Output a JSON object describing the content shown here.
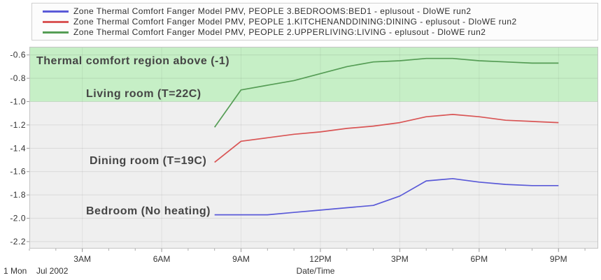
{
  "chart_data": {
    "type": "line",
    "xlabel": "Date/Time",
    "x_day_label": "1 Mon",
    "x_month_label": "Jul 2002",
    "xlim": [
      "01:00",
      "22:30"
    ],
    "ylim": [
      -2.26,
      -0.53
    ],
    "x_ticks": [
      {
        "label": "3AM",
        "time": "03:00"
      },
      {
        "label": "6AM",
        "time": "06:00"
      },
      {
        "label": "9AM",
        "time": "09:00"
      },
      {
        "label": "12PM",
        "time": "12:00"
      },
      {
        "label": "3PM",
        "time": "15:00"
      },
      {
        "label": "6PM",
        "time": "18:00"
      },
      {
        "label": "9PM",
        "time": "21:00"
      }
    ],
    "y_ticks": [
      "-0.6",
      "-0.8",
      "-1.0",
      "-1.2",
      "-1.4",
      "-1.6",
      "-1.8",
      "-2.0",
      "-2.2"
    ],
    "grid": true,
    "legend_position": "top",
    "x": [
      "08:00",
      "09:00",
      "10:00",
      "11:00",
      "12:00",
      "13:00",
      "14:00",
      "15:00",
      "16:00",
      "17:00",
      "18:00",
      "19:00",
      "20:00",
      "21:00"
    ],
    "series": [
      {
        "name": "Zone Thermal Comfort Fanger Model PMV, PEOPLE 3.BEDROOMS:BED1 - eplusout - DloWE run2",
        "annotation": "Bedroom (No heating)",
        "color": "#5a5ad8",
        "values": [
          -1.97,
          -1.97,
          -1.97,
          -1.95,
          -1.93,
          -1.91,
          -1.89,
          -1.81,
          -1.68,
          -1.66,
          -1.69,
          -1.71,
          -1.72,
          -1.72
        ]
      },
      {
        "name": "Zone Thermal Comfort Fanger Model PMV, PEOPLE 1.KITCHENANDDINING:DINING - eplusout - DloWE run2",
        "annotation": "Dining room (T=19C)",
        "color": "#d95555",
        "values": [
          -1.52,
          -1.34,
          -1.31,
          -1.28,
          -1.26,
          -1.23,
          -1.21,
          -1.18,
          -1.13,
          -1.11,
          -1.13,
          -1.16,
          -1.17,
          -1.18
        ]
      },
      {
        "name": "Zone Thermal Comfort Fanger Model PMV, PEOPLE 2.UPPERLIVING:LIVING - eplusout - DloWE run2",
        "annotation": "Living room (T=22C)",
        "color": "#559d55",
        "values": [
          -1.22,
          -0.9,
          -0.86,
          -0.82,
          -0.76,
          -0.7,
          -0.66,
          -0.65,
          -0.63,
          -0.63,
          -0.65,
          -0.66,
          -0.67,
          -0.67
        ]
      }
    ],
    "regions": [
      {
        "label": "Thermal comfort region above (-1)",
        "from": -1.0,
        "color": "#c6efc6"
      }
    ]
  }
}
